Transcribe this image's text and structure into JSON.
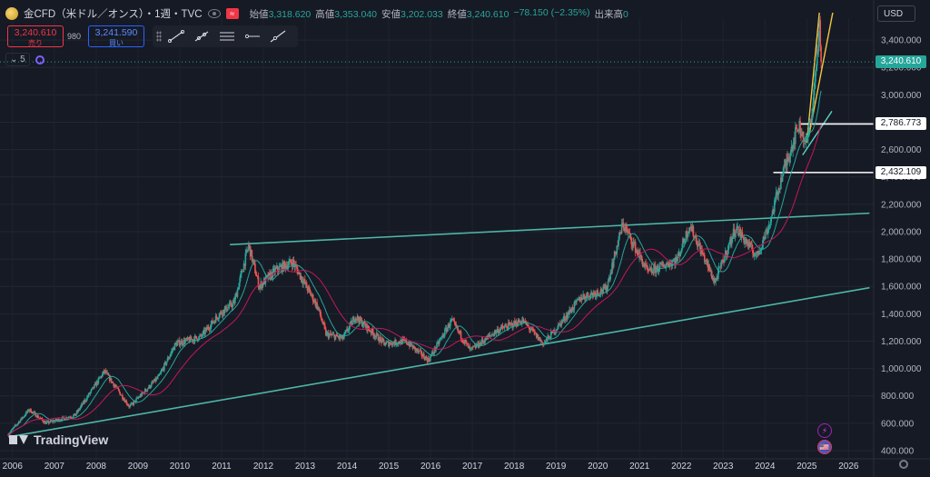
{
  "header": {
    "title": "金CFD（米ドル／オンス）・1週・TVC",
    "ohlc": [
      {
        "label": "始値",
        "value": "3,318.620"
      },
      {
        "label": "高値",
        "value": "3,353.040"
      },
      {
        "label": "安値",
        "value": "3,202.033"
      },
      {
        "label": "終値",
        "value": "3,240.610"
      },
      {
        "label": "",
        "value": "−78.150 (−2.35%)"
      },
      {
        "label": "出来高",
        "value": "0"
      }
    ]
  },
  "trade": {
    "sell_price": "3,240.610",
    "sell_label": "売り",
    "spread": "980",
    "buy_price": "3,241.590",
    "buy_label": "買い"
  },
  "indicator_toggle": "5",
  "currency": "USD",
  "badges": {
    "last": "3,240.610",
    "line1": "2,786.773",
    "line2": "2,432.109"
  },
  "watermark": "TradingView",
  "colors": {
    "background": "#161a25",
    "up": "#26a69a",
    "down": "#ef5350",
    "trendline": "#4db6a9",
    "ma_fast": "#26a69a",
    "ma_slow": "#c2185b",
    "fan": "#f5c542"
  },
  "chart_data": {
    "type": "candlestick",
    "timeframe": "1W",
    "x_ticks": [
      "2006",
      "2007",
      "2008",
      "2009",
      "2010",
      "2011",
      "2012",
      "2013",
      "2014",
      "2015",
      "2016",
      "2017",
      "2018",
      "2019",
      "2020",
      "2021",
      "2022",
      "2023",
      "2024",
      "2025",
      "2026"
    ],
    "y_ticks": [
      "400.000",
      "600.000",
      "800.000",
      "1,000.000",
      "1,200.000",
      "1,400.000",
      "1,600.000",
      "1,800.000",
      "2,000.000",
      "2,200.000",
      "2,400.000",
      "2,600.000",
      "2,800.000",
      "3,000.000",
      "3,200.000",
      "3,400.000"
    ],
    "ylim": [
      340,
      3560
    ],
    "xlim": [
      2005.7,
      2026.6
    ],
    "price_path": [
      [
        2005.9,
        520
      ],
      [
        2006.4,
        700
      ],
      [
        2006.8,
        600
      ],
      [
        2007.5,
        660
      ],
      [
        2008.2,
        980
      ],
      [
        2008.8,
        720
      ],
      [
        2009.5,
        940
      ],
      [
        2009.9,
        1180
      ],
      [
        2010.5,
        1230
      ],
      [
        2010.95,
        1400
      ],
      [
        2011.3,
        1480
      ],
      [
        2011.65,
        1900
      ],
      [
        2011.9,
        1600
      ],
      [
        2012.3,
        1720
      ],
      [
        2012.7,
        1780
      ],
      [
        2013.3,
        1450
      ],
      [
        2013.5,
        1250
      ],
      [
        2013.9,
        1220
      ],
      [
        2014.2,
        1380
      ],
      [
        2014.9,
        1180
      ],
      [
        2015.4,
        1200
      ],
      [
        2015.95,
        1060
      ],
      [
        2016.5,
        1350
      ],
      [
        2016.95,
        1130
      ],
      [
        2017.6,
        1280
      ],
      [
        2018.2,
        1350
      ],
      [
        2018.7,
        1180
      ],
      [
        2019.0,
        1290
      ],
      [
        2019.6,
        1520
      ],
      [
        2020.2,
        1580
      ],
      [
        2020.6,
        2060
      ],
      [
        2021.2,
        1700
      ],
      [
        2021.9,
        1800
      ],
      [
        2022.2,
        2050
      ],
      [
        2022.8,
        1630
      ],
      [
        2023.3,
        2030
      ],
      [
        2023.8,
        1820
      ],
      [
        2024.1,
        2050
      ],
      [
        2024.4,
        2400
      ],
      [
        2024.8,
        2780
      ],
      [
        2025.0,
        2640
      ],
      [
        2025.15,
        2950
      ],
      [
        2025.3,
        3500
      ],
      [
        2025.35,
        3240.61
      ]
    ],
    "trendlines": [
      {
        "from": [
          2011.2,
          1905
        ],
        "to": [
          2026.5,
          2135
        ]
      },
      {
        "from": [
          2005.9,
          500
        ],
        "to": [
          2026.5,
          1590
        ]
      }
    ],
    "horizontal_lines": [
      {
        "price": 2786.773,
        "from_x": 2024.85
      },
      {
        "price": 2432.109,
        "from_x": 2024.2
      }
    ],
    "last_price": 3240.61
  },
  "events": {
    "bolt": "⚡",
    "flag": "🇺🇸"
  }
}
